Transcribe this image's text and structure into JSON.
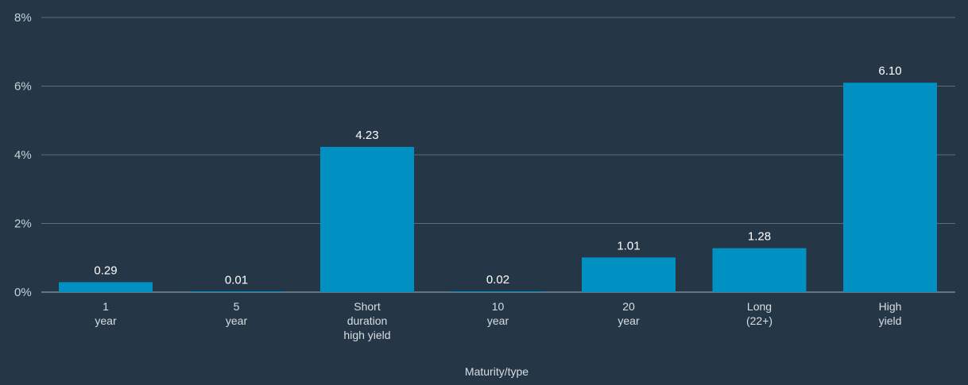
{
  "chart_data": {
    "type": "bar",
    "title": "",
    "xlabel": "Maturity/type",
    "ylabel": "",
    "categories": [
      [
        "1",
        "year"
      ],
      [
        "5",
        "year"
      ],
      [
        "Short",
        "duration",
        "high yield"
      ],
      [
        "10",
        "year"
      ],
      [
        "20",
        "year"
      ],
      [
        "Long",
        "(22+)"
      ],
      [
        "High",
        "yield"
      ]
    ],
    "values": [
      0.29,
      0.01,
      4.23,
      0.02,
      1.01,
      1.28,
      6.1
    ],
    "value_labels": [
      "0.29",
      "0.01",
      "4.23",
      "0.02",
      "1.01",
      "1.28",
      "6.10"
    ],
    "ylim": [
      0,
      8
    ],
    "yticks": [
      0,
      2,
      4,
      6,
      8
    ],
    "ytick_labels": [
      "0%",
      "2%",
      "4%",
      "6%",
      "8%"
    ],
    "grid": true,
    "colors": {
      "background": "#253746",
      "bar": "#0090c2",
      "grid": "#5a6b79",
      "text": "#d8dee3"
    }
  }
}
